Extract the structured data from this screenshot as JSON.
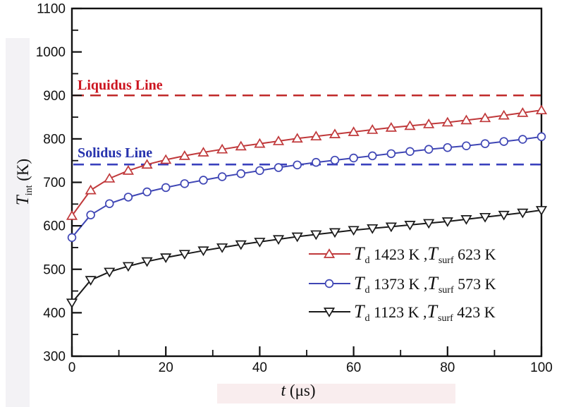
{
  "chart_data": {
    "type": "line",
    "title": "",
    "xlabel": "t (μs)",
    "ylabel": "T_int (K)",
    "xlim": [
      0,
      100
    ],
    "ylim": [
      300,
      1100
    ],
    "grid": false,
    "legend_position": "lower-right-inside",
    "x_major_ticks": [
      0,
      20,
      40,
      60,
      80,
      100
    ],
    "x_minor_ticks": [
      10,
      30,
      50,
      70,
      90
    ],
    "y_major_ticks": [
      300,
      400,
      500,
      600,
      700,
      800,
      900,
      1000,
      1100
    ],
    "y_minor_ticks": [
      350,
      450,
      550,
      650,
      750,
      850,
      950,
      1050
    ],
    "x": [
      0,
      4,
      8,
      12,
      16,
      20,
      24,
      28,
      32,
      36,
      40,
      44,
      48,
      52,
      56,
      60,
      64,
      68,
      72,
      76,
      80,
      84,
      88,
      92,
      96,
      100
    ],
    "series": [
      {
        "name": "Td 1423 K, Tsurf 623 K",
        "color": "#c0393b",
        "marker": "triangle-up",
        "values": [
          623,
          682,
          709,
          727,
          741,
          752,
          761,
          769,
          776,
          783,
          789,
          795,
          801,
          806,
          811,
          816,
          821,
          826,
          830,
          834,
          838,
          843,
          848,
          854,
          860,
          866
        ]
      },
      {
        "name": "Td 1373 K, Tsurf 573 K",
        "color": "#3f46b5",
        "marker": "circle",
        "values": [
          573,
          625,
          651,
          666,
          678,
          688,
          697,
          705,
          713,
          720,
          727,
          734,
          740,
          746,
          751,
          756,
          761,
          766,
          771,
          776,
          780,
          784,
          789,
          794,
          799,
          805
        ]
      },
      {
        "name": "Td 1123 K, Tsurf 423 K",
        "color": "#1a1a1a",
        "marker": "triangle-down",
        "values": [
          423,
          475,
          494,
          507,
          518,
          527,
          535,
          543,
          550,
          557,
          563,
          569,
          575,
          580,
          585,
          590,
          594,
          598,
          602,
          606,
          610,
          615,
          620,
          625,
          630,
          636
        ]
      }
    ],
    "reference_lines": [
      {
        "label": "Liquidus Line",
        "value": 900,
        "line_color": "#c02a2a",
        "label_color": "#cc1520",
        "style": "dashed"
      },
      {
        "label": "Solidus Line",
        "value": 741,
        "line_color": "#3a40bd",
        "label_color": "#2733ae",
        "style": "dashed"
      }
    ]
  },
  "axes": {
    "y_title": {
      "symbol": "T",
      "subscript": "int",
      "rest": " (K)"
    },
    "x_title": {
      "symbol": "t",
      "rest": " (μs)"
    }
  },
  "legend": {
    "entries": [
      {
        "symbol1": "T",
        "sub1": "d",
        "value1": " 1423 K ,",
        "symbol2": "T",
        "sub2": "surf",
        "value2": " 623 K"
      },
      {
        "symbol1": "T",
        "sub1": "d",
        "value1": " 1373 K ,",
        "symbol2": "T",
        "sub2": "surf",
        "value2": " 573 K"
      },
      {
        "symbol1": "T",
        "sub1": "d",
        "value1": " 1123 K ,",
        "symbol2": "T",
        "sub2": "surf",
        "value2": " 423 K"
      }
    ]
  }
}
